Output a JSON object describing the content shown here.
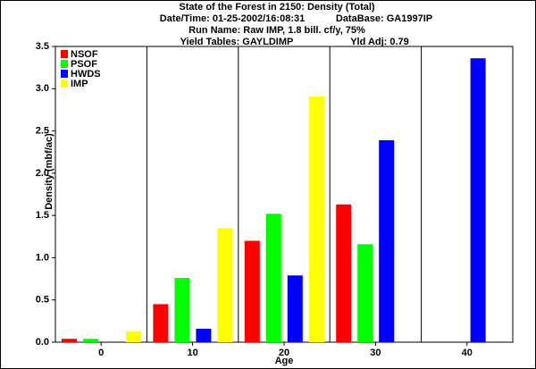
{
  "chart_data": {
    "type": "bar",
    "title": "State of the Forest in 2150: Density (Total)",
    "subtitle_lines": [
      [
        "Date/Time: 01-25-2002/16:08:31",
        "DataBase: GA1997IP"
      ],
      [
        "Run Name: Raw IMP, 1.8 bill. cf/y, 75%"
      ],
      [
        "Yield Tables: GAYLDIMP",
        "Yld Adj: 0.79"
      ]
    ],
    "x_label": "Age",
    "y_label": "Density (mbf/ac)",
    "categories": [
      "0",
      "10",
      "20",
      "30",
      "40"
    ],
    "series": [
      {
        "name": "NSOF",
        "color": "#ff0000",
        "values": [
          0.04,
          0.45,
          1.2,
          1.63,
          0
        ]
      },
      {
        "name": "PSOF",
        "color": "#00ff00",
        "values": [
          0.04,
          0.76,
          1.52,
          1.16,
          0
        ]
      },
      {
        "name": "HWDS",
        "color": "#0000ff",
        "values": [
          0,
          0.16,
          0.79,
          2.39,
          3.36
        ]
      },
      {
        "name": "IMP",
        "color": "#ffff00",
        "values": [
          0.13,
          1.35,
          2.91,
          0,
          0
        ]
      }
    ],
    "ylim": [
      0,
      3.5
    ],
    "yticks": [
      {
        "value": 0,
        "label": "0.0"
      },
      {
        "value": 0.5,
        "label": "0.5"
      },
      {
        "value": 1,
        "label": "1.0"
      },
      {
        "value": 1.5,
        "label": "1.5"
      },
      {
        "value": 2,
        "label": "2.0"
      },
      {
        "value": 2.5,
        "label": "2.5"
      },
      {
        "value": 3,
        "label": "3.0"
      },
      {
        "value": 3.5,
        "label": "3.5"
      }
    ],
    "legend": "upper-left"
  }
}
